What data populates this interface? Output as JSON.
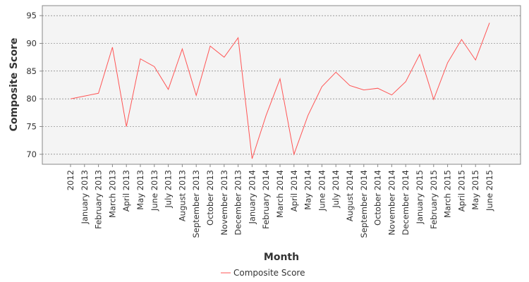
{
  "chart_data": {
    "type": "line",
    "title": "",
    "xlabel": "Month",
    "ylabel": "Composite Score",
    "categories": [
      "2012",
      "January 2013",
      "February 2013",
      "March 2013",
      "April 2013",
      "May 2013",
      "June 2013",
      "July 2013",
      "August 2013",
      "September 2013",
      "October 2013",
      "November 2013",
      "December 2013",
      "January 2014",
      "February 2014",
      "March 2014",
      "April 2014",
      "May 2014",
      "June 2014",
      "July 2014",
      "August 2014",
      "September 2014",
      "October 2014",
      "November 2014",
      "December 2014",
      "January 2015",
      "February 2015",
      "March 2015",
      "April 2015",
      "May 2015",
      "June 2015"
    ],
    "series": [
      {
        "name": "Composite Score",
        "color": "#ff5555",
        "values": [
          80.0,
          80.5,
          81.0,
          89.3,
          75.0,
          87.2,
          85.8,
          81.7,
          89.0,
          80.6,
          89.5,
          87.5,
          91.0,
          69.2,
          77.0,
          83.6,
          70.0,
          77.0,
          82.2,
          84.8,
          82.4,
          81.6,
          81.9,
          80.7,
          83.1,
          88.0,
          79.9,
          86.5,
          90.7,
          87.0,
          93.7
        ]
      }
    ],
    "yticks": [
      70,
      75,
      80,
      85,
      90,
      95
    ],
    "ylim": [
      68.2,
      96.8
    ],
    "grid": true,
    "legend_position": "bottom"
  }
}
